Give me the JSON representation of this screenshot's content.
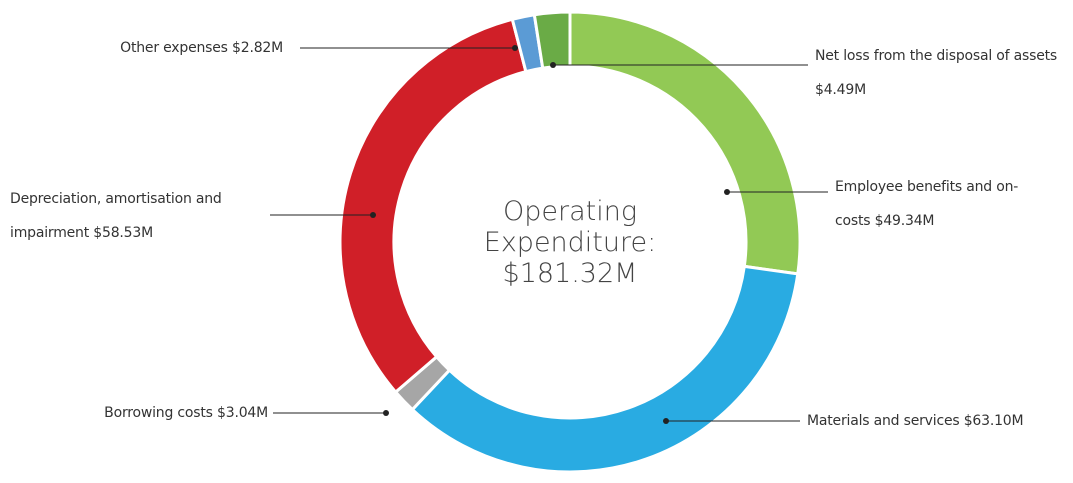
{
  "chart_data": {
    "type": "pie",
    "center_label": "Operating Expenditure:",
    "total_label": "$181.32M",
    "categories": [
      "Employee benefits and on-costs",
      "Materials and services",
      "Borrowing costs",
      "Depreciation, amortisation and impairment",
      "Other expenses",
      "Net loss from the disposal of assets"
    ],
    "values": [
      49.34,
      63.1,
      3.04,
      58.53,
      2.82,
      4.49
    ],
    "value_labels": [
      "$49.34M",
      "$63.10M",
      "$3.04M",
      "$58.53M",
      "$2.82M",
      "$4.49M"
    ],
    "colors": [
      "#92c955",
      "#29abe2",
      "#a6a6a6",
      "#d01f28",
      "#5b9bd5",
      "#6aab46"
    ]
  }
}
